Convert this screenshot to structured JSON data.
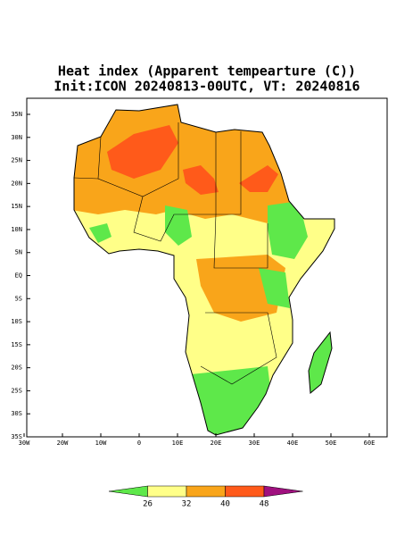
{
  "title": "Heat index (Apparent tempearture (C))",
  "subtitle": "Init:ICON 20240813-00UTC, VT: 20240816",
  "lat_labels": [
    "35N",
    "30N",
    "25N",
    "20N",
    "15N",
    "10N",
    "5N",
    "EQ",
    "5S",
    "10S",
    "15S",
    "20S",
    "25S",
    "30S",
    "35S"
  ],
  "lon_labels": [
    "30W",
    "20W",
    "10W",
    "0",
    "10E",
    "20E",
    "30E",
    "40E",
    "50E",
    "60E"
  ],
  "colorbar": {
    "labels": [
      26,
      32,
      40,
      48
    ],
    "colors": [
      "#5ee84a",
      "#ffff88",
      "#f9a51a",
      "#ff5a1a",
      "#a0107f"
    ]
  }
}
